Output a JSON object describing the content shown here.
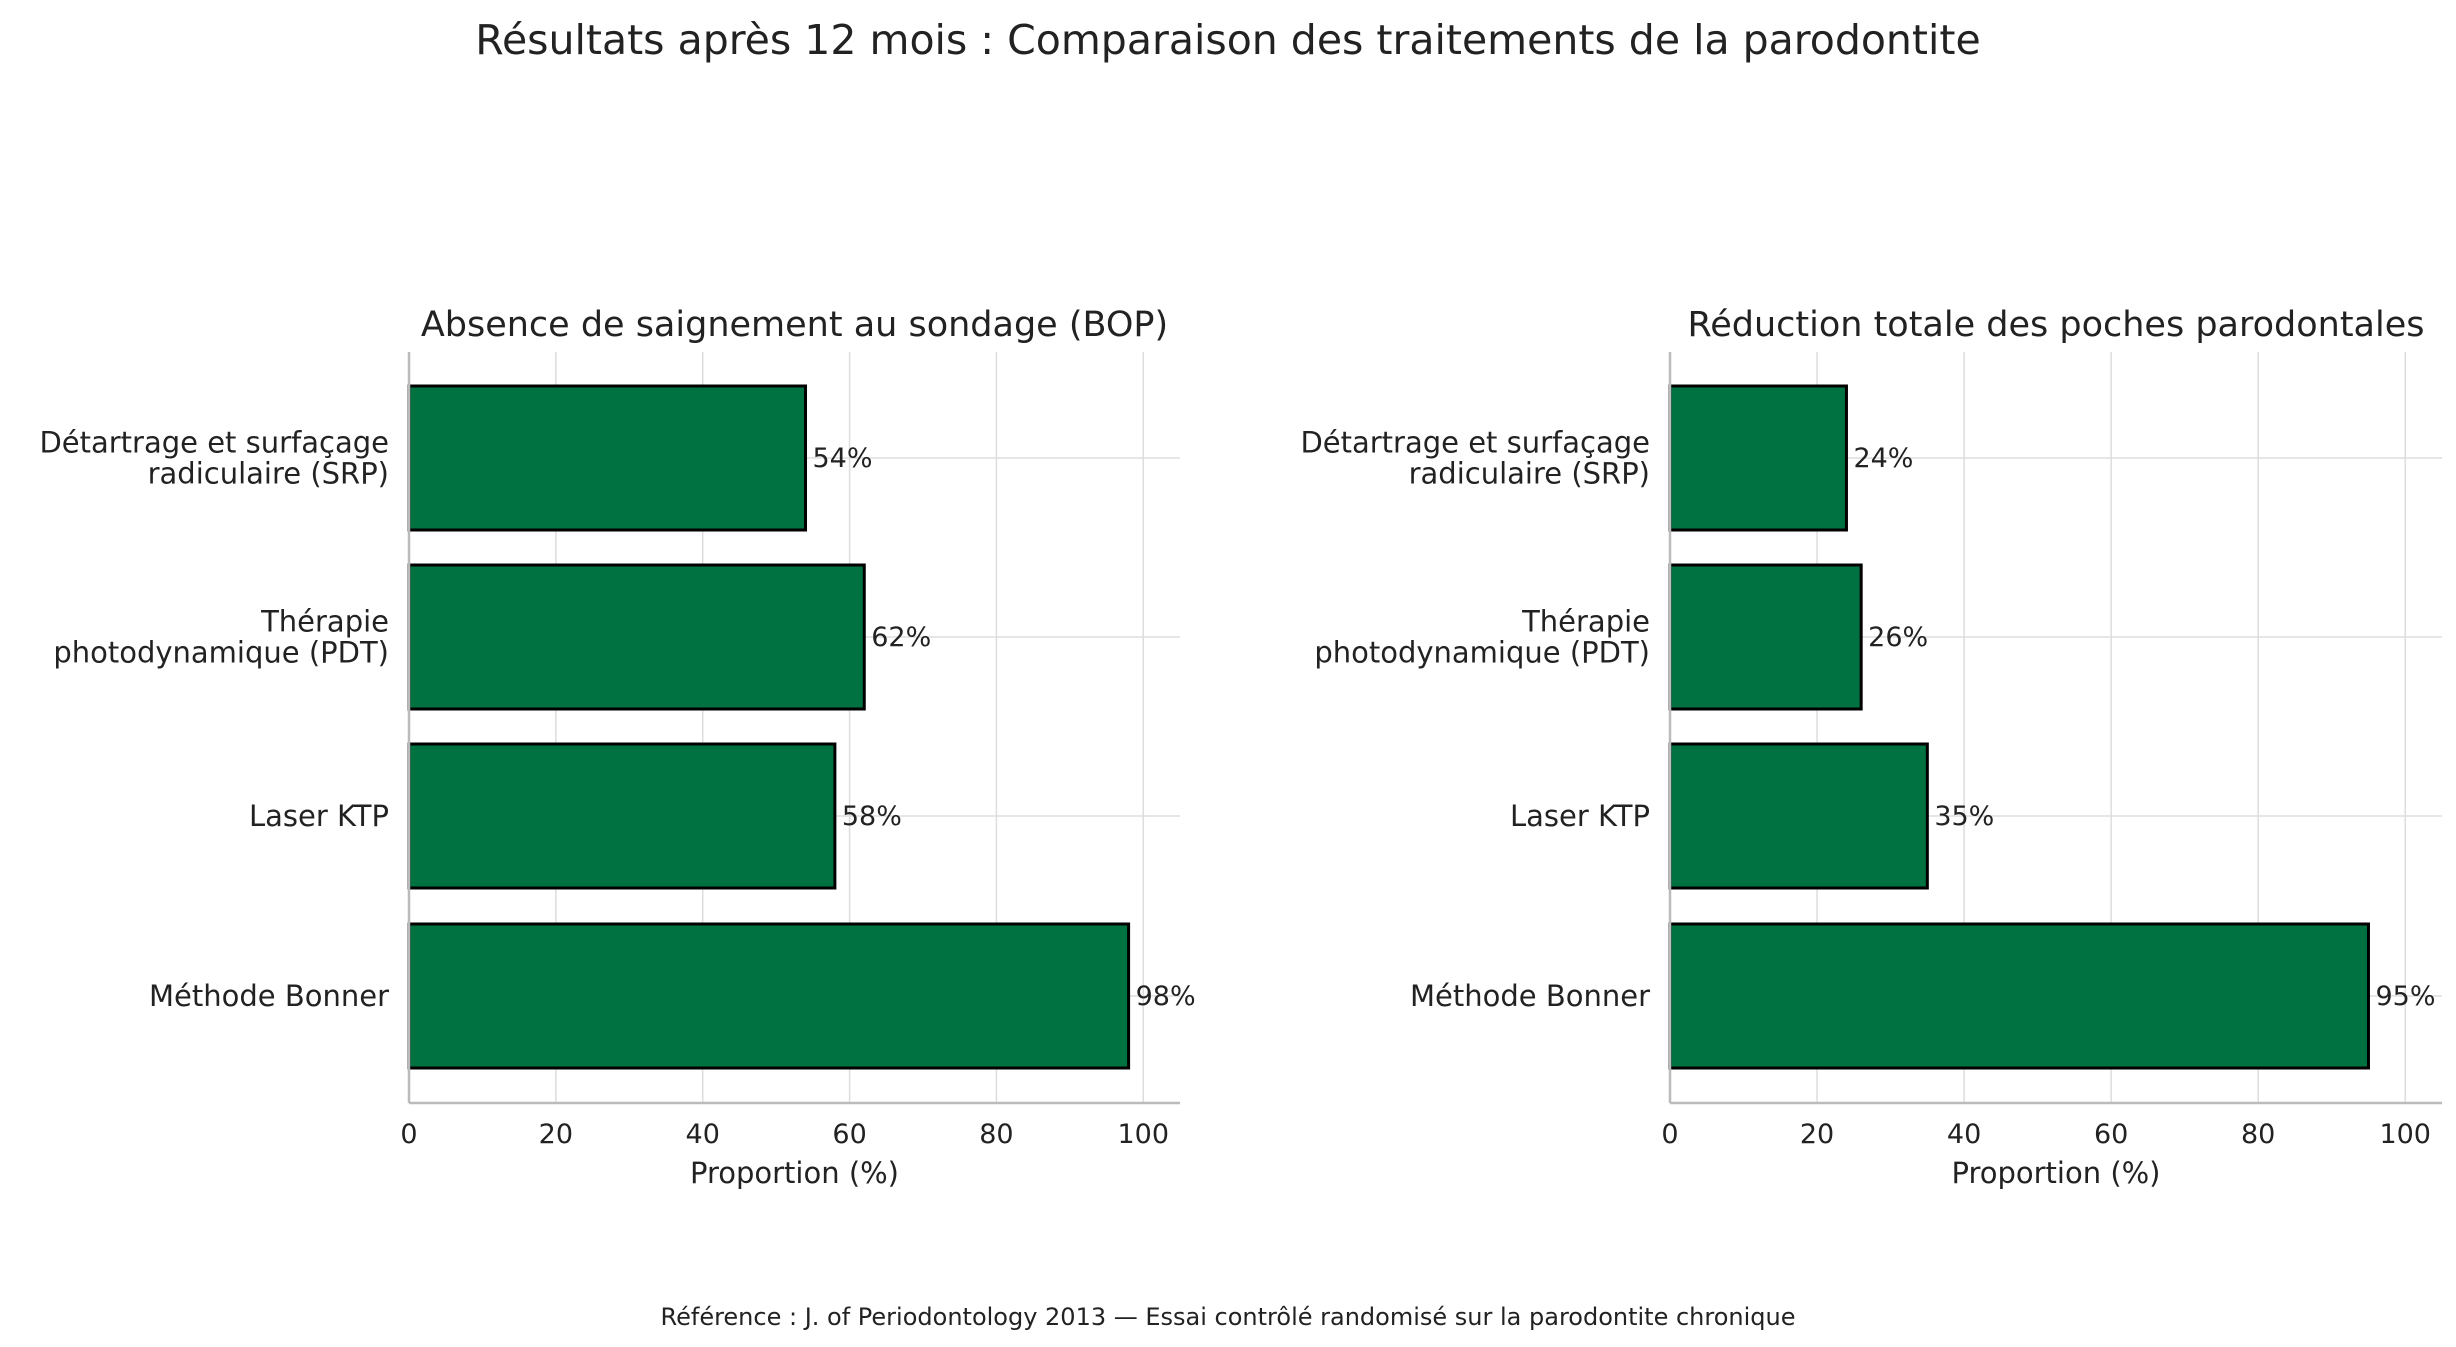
{
  "title": "Résultats après 12 mois : Comparaison des traitements de la parodontite",
  "footnote": "Référence : J. of Periodontology 2013 — Essai contrôlé randomisé sur la parodontite chronique",
  "colors": {
    "bar_fill": "#007140",
    "bar_edge": "#000000",
    "grid": "#dddddd",
    "axis": "#bbbbbb",
    "text": "#222222"
  },
  "chart_data": [
    {
      "type": "bar",
      "orientation": "horizontal",
      "title": "Absence de saignement au sondage (BOP)",
      "categories": [
        [
          "Détartrage et surfaçage",
          "radiculaire (SRP)"
        ],
        [
          "Thérapie",
          "photodynamique (PDT)"
        ],
        [
          "Laser KTP"
        ],
        [
          "Méthode Bonner"
        ]
      ],
      "values": [
        54,
        62,
        58,
        98
      ],
      "value_labels": [
        "54%",
        "62%",
        "58%",
        "98%"
      ],
      "xlabel": "Proportion (%)",
      "xlim": [
        0,
        105
      ],
      "xticks": [
        "0",
        "20",
        "40",
        "60",
        "80",
        "100"
      ],
      "grid": true
    },
    {
      "type": "bar",
      "orientation": "horizontal",
      "title": "Réduction totale des poches parodontales",
      "categories": [
        [
          "Détartrage et surfaçage",
          "radiculaire (SRP)"
        ],
        [
          "Thérapie",
          "photodynamique (PDT)"
        ],
        [
          "Laser KTP"
        ],
        [
          "Méthode Bonner"
        ]
      ],
      "values": [
        24,
        26,
        35,
        95
      ],
      "value_labels": [
        "24%",
        "26%",
        "35%",
        "95%"
      ],
      "xlabel": "Proportion (%)",
      "xlim": [
        0,
        105
      ],
      "xticks": [
        "0",
        "20",
        "40",
        "60",
        "80",
        "100"
      ],
      "grid": true
    }
  ]
}
